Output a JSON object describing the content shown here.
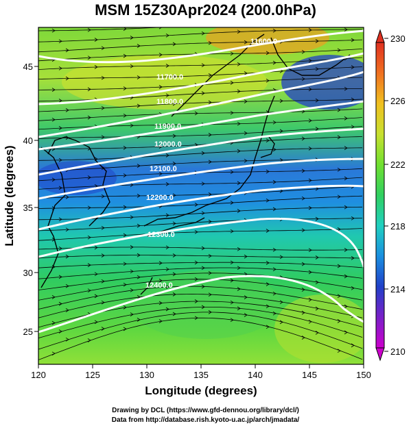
{
  "title": "MSM 15Z30Apr2024 (200.0hPa)",
  "x_axis": {
    "label": "Longitude (degrees)",
    "ticks": [
      "120",
      "125",
      "130",
      "135",
      "140",
      "145",
      "150"
    ]
  },
  "y_axis": {
    "label": "Latitude  (degrees)",
    "ticks": [
      "25",
      "30",
      "35",
      "40",
      "45"
    ]
  },
  "colorbar": {
    "ticks": [
      "210",
      "214",
      "218",
      "222",
      "226",
      "230"
    ],
    "min": 210,
    "max": 230,
    "colors": [
      "#cc00cc",
      "#7a20c8",
      "#2040c8",
      "#1a8fe0",
      "#20d0c0",
      "#30d060",
      "#70e030",
      "#c8e030",
      "#f0c020",
      "#f07020",
      "#e03020"
    ]
  },
  "contour_labels": [
    "11600.0",
    "11700.0",
    "11800.0",
    "11900.0",
    "12000.0",
    "12100.0",
    "12200.0",
    "12300.0",
    "12400.0"
  ],
  "credits": {
    "line1": "Drawing by DCL (https://www.gfd-dennou.org/library/dcl/)",
    "line2": "Data from http://database.rish.kyoto-u.ac.jp/arch/jmadata/"
  },
  "colors": {
    "contour": "#ffffff",
    "streamline": "#000000",
    "coast": "#000000"
  }
}
